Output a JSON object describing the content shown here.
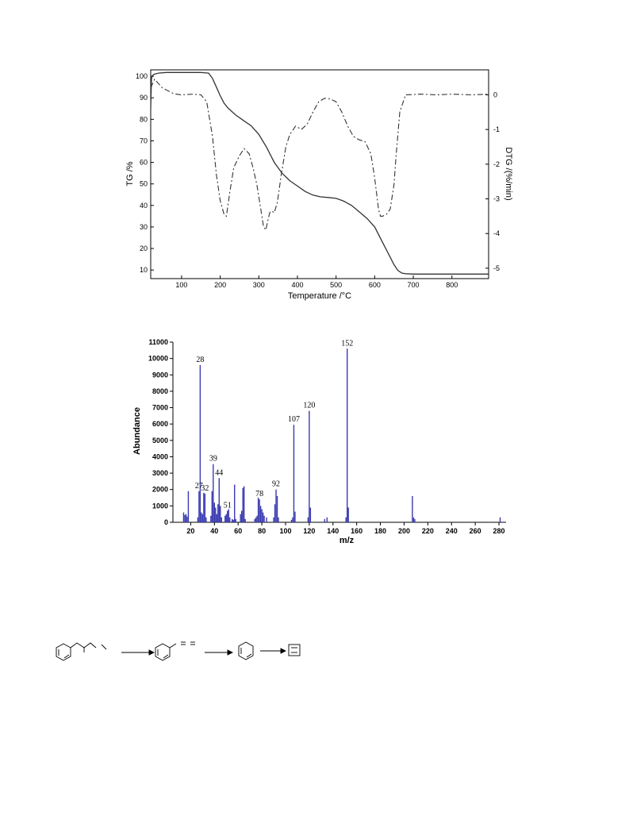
{
  "chart_data": [
    {
      "type": "line",
      "xlabel": "Temperature /°C",
      "ylabel": "TG /%",
      "y2label": "DTG /(%/min)",
      "xlim": [
        20,
        895
      ],
      "ylim": [
        6,
        103
      ],
      "y2lim": [
        -5.3,
        0.72
      ],
      "xticks": [
        100,
        200,
        300,
        400,
        500,
        600,
        700,
        800
      ],
      "yticks": [
        10,
        20,
        30,
        40,
        50,
        60,
        70,
        80,
        90,
        100
      ],
      "y2ticks": [
        0,
        -1,
        -2,
        -3,
        -4,
        -5
      ],
      "grid": false,
      "series": [
        {
          "axis": "left",
          "style": "solid",
          "x": [
            20,
            22,
            25,
            30,
            40,
            60,
            100,
            150,
            170,
            180,
            190,
            200,
            210,
            220,
            240,
            260,
            280,
            300,
            310,
            320,
            330,
            340,
            360,
            380,
            400,
            420,
            440,
            460,
            480,
            500,
            520,
            540,
            560,
            580,
            600,
            620,
            640,
            650,
            660,
            670,
            680,
            700,
            800,
            895
          ],
          "y": [
            85,
            99,
            100.5,
            101,
            101.5,
            101.8,
            101.8,
            101.8,
            101.5,
            99,
            95,
            91,
            87.5,
            85.3,
            82,
            79.5,
            77,
            73,
            70,
            67,
            63.5,
            60,
            55,
            51.5,
            49,
            46.5,
            44.8,
            44,
            43.7,
            43.3,
            42,
            40,
            37,
            34,
            30,
            23,
            16,
            12.5,
            9.8,
            8.6,
            8.3,
            8.1,
            8.1,
            8.1
          ]
        },
        {
          "axis": "right",
          "style": "dashed",
          "x": [
            20,
            30,
            50,
            80,
            100,
            130,
            150,
            165,
            180,
            190,
            200,
            210,
            216,
            225,
            235,
            250,
            262,
            275,
            285,
            295,
            305,
            312,
            318,
            322,
            328,
            333,
            340,
            348,
            358,
            370,
            380,
            395,
            410,
            425,
            440,
            455,
            470,
            485,
            500,
            515,
            530,
            545,
            560,
            575,
            590,
            600,
            610,
            615,
            620,
            630,
            640,
            650,
            655,
            665,
            680,
            720,
            760,
            800,
            850,
            895
          ],
          "y": [
            0.2,
            0.45,
            0.2,
            0.03,
            0.0,
            0.02,
            0.0,
            -0.2,
            -1.2,
            -2.3,
            -3.05,
            -3.45,
            -3.5,
            -2.8,
            -2.1,
            -1.75,
            -1.55,
            -1.7,
            -2.1,
            -2.6,
            -3.3,
            -3.8,
            -3.9,
            -3.7,
            -3.4,
            -3.35,
            -3.4,
            -3.1,
            -2.3,
            -1.5,
            -1.15,
            -0.9,
            -1.0,
            -0.85,
            -0.5,
            -0.2,
            -0.1,
            -0.12,
            -0.2,
            -0.5,
            -0.9,
            -1.2,
            -1.3,
            -1.35,
            -1.7,
            -2.4,
            -3.3,
            -3.5,
            -3.5,
            -3.45,
            -3.3,
            -2.6,
            -1.8,
            -0.5,
            0.0,
            0.02,
            0.0,
            0.02,
            0.0,
            0.02
          ]
        }
      ]
    },
    {
      "type": "bar",
      "xlabel": "m/z",
      "ylabel": "Abundance",
      "xlim": [
        5,
        286
      ],
      "ylim": [
        0,
        11000
      ],
      "xticks": [
        20,
        40,
        60,
        80,
        100,
        120,
        140,
        160,
        180,
        200,
        220,
        240,
        260,
        280
      ],
      "yticks": [
        0,
        1000,
        2000,
        3000,
        4000,
        5000,
        6000,
        7000,
        8000,
        9000,
        10000,
        11000
      ],
      "grid": false,
      "labeled_peaks": [
        "28",
        "27",
        "32",
        "39",
        "44",
        "51",
        "78",
        "92",
        "107",
        "120",
        "152"
      ],
      "x": [
        14,
        15,
        16,
        17,
        18,
        26,
        27,
        28,
        29,
        30,
        31,
        32,
        33,
        37,
        38,
        39,
        40,
        41,
        42,
        43,
        44,
        45,
        46,
        49,
        50,
        51,
        52,
        53,
        55,
        56,
        57,
        58,
        62,
        63,
        64,
        65,
        66,
        74,
        75,
        76,
        77,
        78,
        79,
        80,
        81,
        82,
        84,
        90,
        91,
        92,
        93,
        94,
        105,
        106,
        107,
        108,
        119,
        120,
        121,
        133,
        135,
        151,
        152,
        153,
        207,
        208,
        209,
        281
      ],
      "values": [
        600,
        450,
        500,
        350,
        1900,
        300,
        1900,
        9600,
        600,
        500,
        1800,
        1750,
        300,
        400,
        1900,
        3550,
        1200,
        900,
        500,
        1100,
        2700,
        1000,
        300,
        400,
        500,
        700,
        800,
        300,
        200,
        150,
        2300,
        200,
        500,
        700,
        2100,
        2200,
        200,
        200,
        300,
        400,
        1500,
        1400,
        1000,
        800,
        600,
        400,
        300,
        300,
        1100,
        2000,
        1600,
        300,
        150,
        300,
        5950,
        650,
        300,
        6800,
        900,
        200,
        300,
        300,
        10600,
        900,
        1600,
        300,
        200,
        300
      ]
    }
  ]
}
